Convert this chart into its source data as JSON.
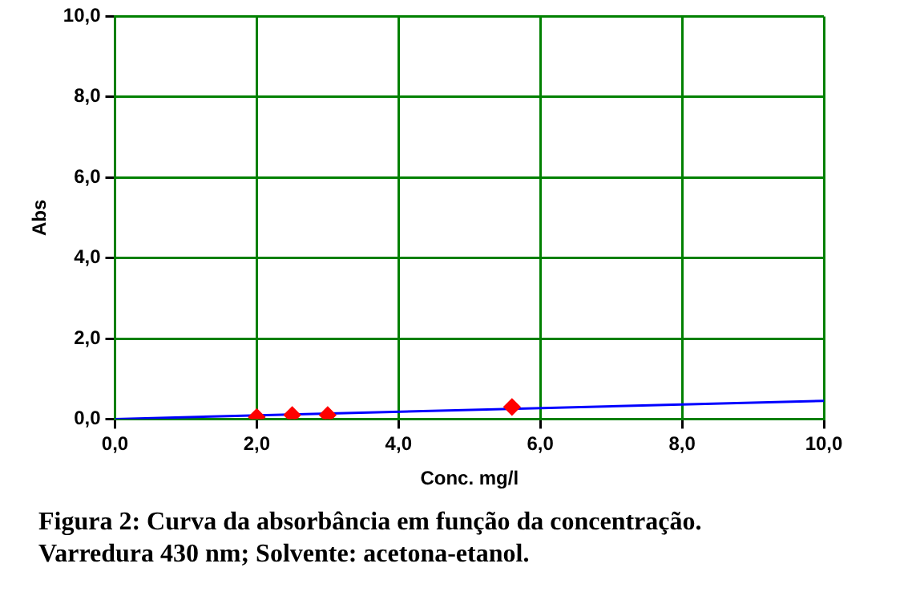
{
  "chart_data": {
    "type": "scatter",
    "xlabel": "Conc. mg/l",
    "ylabel": "Abs",
    "xlim": [
      0,
      10
    ],
    "ylim": [
      0,
      10
    ],
    "xticks": [
      {
        "value": 0,
        "label": "0,0"
      },
      {
        "value": 2,
        "label": "2,0"
      },
      {
        "value": 4,
        "label": "4,0"
      },
      {
        "value": 6,
        "label": "6,0"
      },
      {
        "value": 8,
        "label": "8,0"
      },
      {
        "value": 10,
        "label": "10,0"
      }
    ],
    "yticks": [
      {
        "value": 0,
        "label": "0,0"
      },
      {
        "value": 2,
        "label": "2,0"
      },
      {
        "value": 4,
        "label": "4,0"
      },
      {
        "value": 6,
        "label": "6,0"
      },
      {
        "value": 8,
        "label": "8,0"
      },
      {
        "value": 10,
        "label": "10,0"
      }
    ],
    "grid": true,
    "marker": "diamond",
    "series": [
      {
        "type": "scatter",
        "color": "#ff0000",
        "x": [
          2.0,
          2.5,
          3.0,
          5.6
        ],
        "values": [
          0.05,
          0.1,
          0.1,
          0.3
        ]
      },
      {
        "type": "line",
        "color": "#0000ff",
        "marker": "none",
        "x": [
          0,
          10
        ],
        "values": [
          0,
          0.45
        ]
      }
    ],
    "annotations": [
      "Figura 2: Curva da absorbância em função da concentração.",
      "Varredura 430 nm; Solvente: acetona-etanol."
    ]
  }
}
